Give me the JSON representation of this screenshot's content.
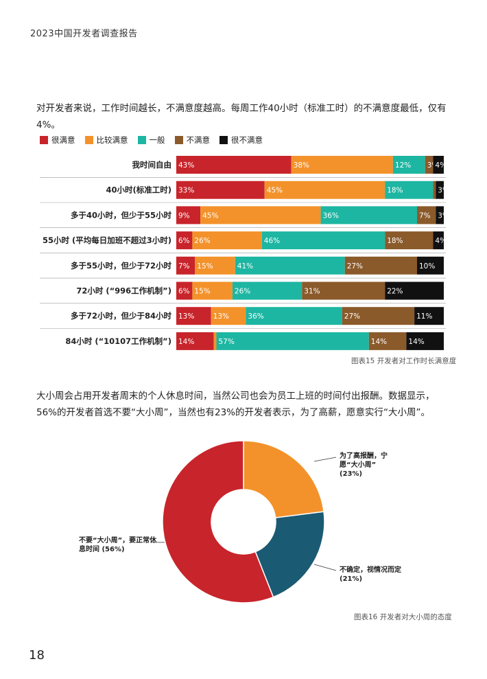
{
  "header": {
    "title": "2023中国开发者调查报告"
  },
  "paragraph1": "对开发者来说，工作时间越长，不满意度越高。每周工作40小时（标准工时）的不满意度最低，仅有4%。",
  "paragraph2": "大小周会占用开发者周末的个人休息时间，当然公司也会为员工上班的时间付出报酬。数据显示，56%的开发者首选不要“大小周”，当然也有23%的开发者表示，为了高薪，愿意实行“大小周”。",
  "chart_data": [
    {
      "type": "bar",
      "stacked": true,
      "orientation": "horizontal",
      "legend_position": "top-left",
      "categories": [
        "我时间自由",
        "40小时(标准工时)",
        "多于40小时，但少于55小时",
        "55小时 (平均每日加班不超过3小时)",
        "多于55小时，但少于72小时",
        "72小时 (“996工作机制”)",
        "多于72小时，但少于84小时",
        "84小时 (“10107工作机制”)"
      ],
      "series": [
        {
          "name": "很满意",
          "color": "#C8242B",
          "values": [
            43,
            33,
            9,
            6,
            7,
            6,
            13,
            14
          ]
        },
        {
          "name": "比较满意",
          "color": "#F3922B",
          "values": [
            38,
            45,
            45,
            26,
            15,
            15,
            13,
            1
          ]
        },
        {
          "name": "一般",
          "color": "#1DB6A2",
          "values": [
            12,
            18,
            36,
            46,
            41,
            26,
            36,
            57
          ]
        },
        {
          "name": "不满意",
          "color": "#8B5A2B",
          "values": [
            3,
            1,
            7,
            18,
            27,
            31,
            27,
            14
          ]
        },
        {
          "name": "很不满意",
          "color": "#111111",
          "values": [
            4,
            3,
            3,
            4,
            10,
            22,
            11,
            14
          ]
        }
      ],
      "caption": "图表15 开发者对工作时长满意度"
    },
    {
      "type": "pie",
      "donut": true,
      "slices": [
        {
          "label": "为了高报酬，宁愿“大小周” (23%)",
          "value": 23,
          "color": "#F3922B"
        },
        {
          "label": "不确定，视情况而定 (21%)",
          "value": 21,
          "color": "#1B5A73"
        },
        {
          "label": "不要“大小周”，要正常休息时间 (56%)",
          "value": 56,
          "color": "#C8242B"
        }
      ],
      "caption": "图表16 开发者对大小周的态度"
    }
  ],
  "page_number": "18"
}
